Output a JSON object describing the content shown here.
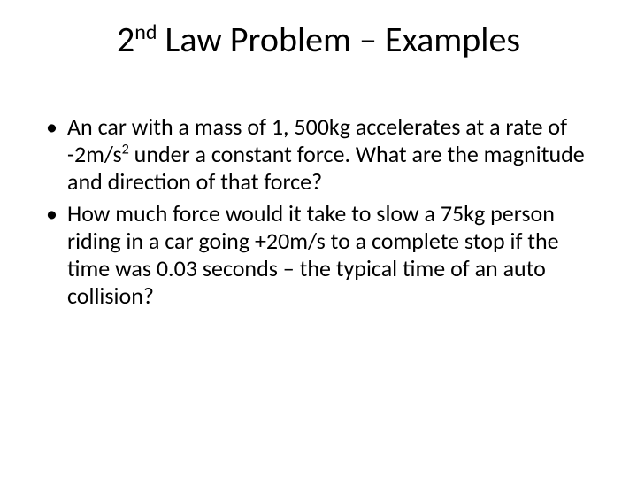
{
  "slide": {
    "background_color": "#ffffff",
    "text_color": "#000000",
    "font_family": "Calibri",
    "title": {
      "html": "2<sup>nd</sup> Law Problem – Examples",
      "fontsize_pt": 40,
      "weight": 400,
      "align": "center"
    },
    "bullets": {
      "fontsize_pt": 26,
      "line_height": 1.2,
      "marker": "•",
      "items": [
        {
          "html": "An car with a mass of 1, 500kg accelerates at a rate of -2m/s<sup>2</sup> under a constant force. What are the magnitude and direction of that force?"
        },
        {
          "html": "How much force would it take to slow a 75kg person riding in a car going +20m/s to a complete stop if the time was 0.03 seconds – the typical time of an auto collision?"
        }
      ]
    }
  }
}
